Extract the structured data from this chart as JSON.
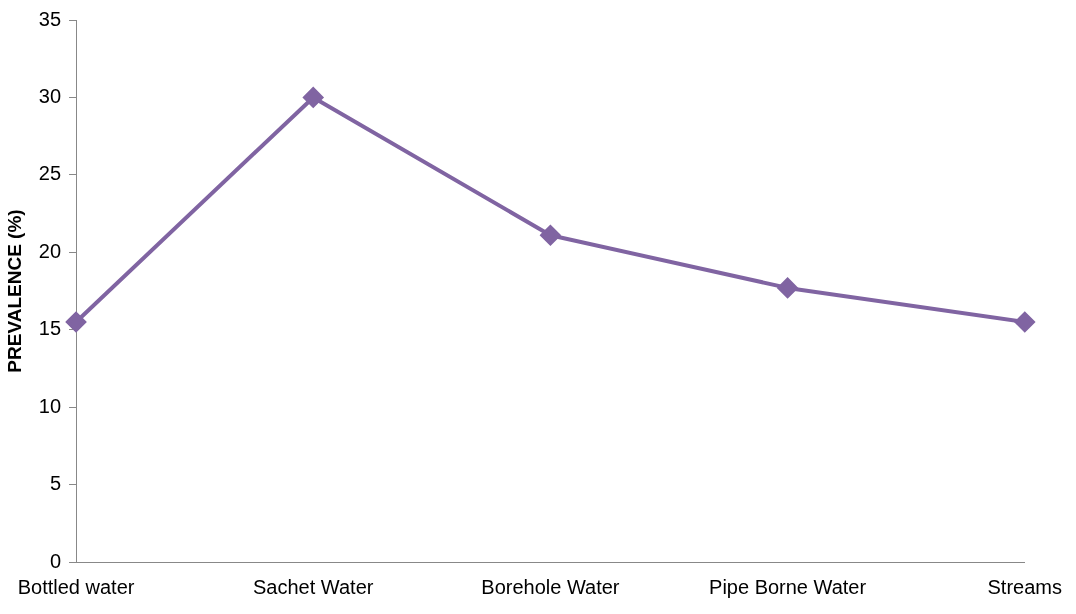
{
  "chart_data": {
    "type": "line",
    "ylabel": "PREVALENCE (%)",
    "categories": [
      "Bottled water",
      "Sachet Water",
      "Borehole Water",
      "Pipe Borne Water",
      "Streams"
    ],
    "series": [
      {
        "color": "#8064a2",
        "values": [
          15.5,
          30,
          21.1,
          17.7,
          15.5
        ]
      }
    ],
    "ylim": [
      0,
      35
    ],
    "yticks": [
      0,
      5,
      10,
      15,
      20,
      25,
      30,
      35
    ],
    "grid": false,
    "legend": false,
    "marker": "diamond",
    "line_style": "solid"
  }
}
